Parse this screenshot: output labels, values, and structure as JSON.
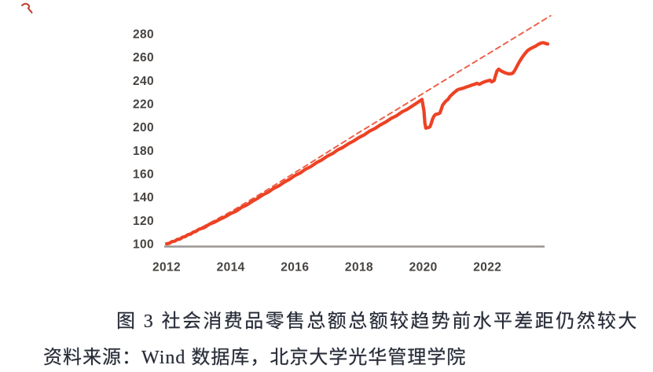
{
  "figure": {
    "caption": "图 3 社会消费品零售总额总额较趋势前水平差距仍然较大",
    "source": "资料来源：Wind 数据库，北京大学光华管理学院"
  },
  "chart_data": {
    "type": "line",
    "title": "",
    "xlabel": "",
    "ylabel": "",
    "xlim": [
      2011.9,
      2024.1
    ],
    "ylim": [
      100,
      296
    ],
    "grid": false,
    "legend_position": "none",
    "x_ticks": [
      2012,
      2014,
      2016,
      2018,
      2020,
      2022
    ],
    "y_ticks": [
      100,
      120,
      140,
      160,
      180,
      200,
      220,
      240,
      260,
      280
    ],
    "colors": {
      "actual_line": "#ed4224",
      "trend_line": "#ee5c43",
      "axis_line": "#999693",
      "tick_text": "#474340"
    },
    "series": [
      {
        "name": "trend",
        "style": "dashed",
        "color": "#ee5c43",
        "width": 1.9,
        "points": [
          [
            2012.1,
            100.3
          ],
          [
            2013,
            112.8
          ],
          [
            2014,
            127.5
          ],
          [
            2015,
            144.0
          ],
          [
            2016,
            161.0
          ],
          [
            2017,
            178.3
          ],
          [
            2018,
            195.5
          ],
          [
            2019,
            212.2
          ],
          [
            2020,
            229.0
          ],
          [
            2021,
            245.8
          ],
          [
            2022,
            262.5
          ],
          [
            2023,
            279.2
          ],
          [
            2023.97,
            295.5
          ]
        ]
      },
      {
        "name": "actual",
        "style": "solid",
        "color": "#ed4224",
        "width": 4.2,
        "points": [
          [
            2012.0,
            100.0
          ],
          [
            2012.08,
            100.4
          ],
          [
            2012.17,
            101.9
          ],
          [
            2012.25,
            102.2
          ],
          [
            2012.33,
            103.7
          ],
          [
            2012.42,
            104.1
          ],
          [
            2012.5,
            105.7
          ],
          [
            2012.58,
            106.2
          ],
          [
            2012.67,
            107.9
          ],
          [
            2012.75,
            108.3
          ],
          [
            2012.83,
            110.0
          ],
          [
            2012.92,
            110.7
          ],
          [
            2013.0,
            112.4
          ],
          [
            2013.17,
            113.8
          ],
          [
            2013.33,
            116.7
          ],
          [
            2013.5,
            118.6
          ],
          [
            2013.67,
            121.2
          ],
          [
            2013.83,
            123.2
          ],
          [
            2014.0,
            126.0
          ],
          [
            2014.17,
            128.0
          ],
          [
            2014.33,
            131.1
          ],
          [
            2014.5,
            133.3
          ],
          [
            2014.67,
            136.4
          ],
          [
            2014.83,
            138.8
          ],
          [
            2015.0,
            142.0
          ],
          [
            2015.17,
            144.3
          ],
          [
            2015.33,
            147.4
          ],
          [
            2015.5,
            149.7
          ],
          [
            2015.67,
            152.9
          ],
          [
            2015.83,
            155.3
          ],
          [
            2016.0,
            158.5
          ],
          [
            2016.17,
            160.8
          ],
          [
            2016.33,
            164.0
          ],
          [
            2016.5,
            166.3
          ],
          [
            2016.67,
            169.5
          ],
          [
            2016.83,
            171.8
          ],
          [
            2017.0,
            175.0
          ],
          [
            2017.17,
            177.3
          ],
          [
            2017.33,
            180.4
          ],
          [
            2017.5,
            182.7
          ],
          [
            2017.67,
            185.8
          ],
          [
            2017.83,
            188.1
          ],
          [
            2018.0,
            191.2
          ],
          [
            2018.17,
            193.6
          ],
          [
            2018.33,
            196.7
          ],
          [
            2018.5,
            199.0
          ],
          [
            2018.67,
            202.1
          ],
          [
            2018.83,
            204.4
          ],
          [
            2019.0,
            207.5
          ],
          [
            2019.17,
            209.8
          ],
          [
            2019.33,
            213.0
          ],
          [
            2019.5,
            215.3
          ],
          [
            2019.67,
            218.4
          ],
          [
            2019.83,
            221.2
          ],
          [
            2019.96,
            223.8
          ],
          [
            2020.02,
            214.0
          ],
          [
            2020.05,
            203.5
          ],
          [
            2020.08,
            199.2
          ],
          [
            2020.17,
            199.8
          ],
          [
            2020.21,
            200.4
          ],
          [
            2020.25,
            203.2
          ],
          [
            2020.29,
            207.0
          ],
          [
            2020.33,
            209.2
          ],
          [
            2020.38,
            210.9
          ],
          [
            2020.46,
            211.4
          ],
          [
            2020.52,
            212.2
          ],
          [
            2020.56,
            215.2
          ],
          [
            2020.6,
            218.6
          ],
          [
            2020.65,
            220.6
          ],
          [
            2020.71,
            222.4
          ],
          [
            2020.77,
            223.8
          ],
          [
            2020.83,
            226.2
          ],
          [
            2020.92,
            228.6
          ],
          [
            2021.0,
            230.6
          ],
          [
            2021.08,
            232.2
          ],
          [
            2021.17,
            232.9
          ],
          [
            2021.25,
            233.4
          ],
          [
            2021.33,
            234.3
          ],
          [
            2021.42,
            235.1
          ],
          [
            2021.5,
            235.9
          ],
          [
            2021.58,
            236.6
          ],
          [
            2021.67,
            237.6
          ],
          [
            2021.75,
            236.7
          ],
          [
            2021.83,
            238.0
          ],
          [
            2021.92,
            239.0
          ],
          [
            2022.0,
            239.6
          ],
          [
            2022.08,
            240.2
          ],
          [
            2022.13,
            238.9
          ],
          [
            2022.17,
            239.3
          ],
          [
            2022.21,
            240.1
          ],
          [
            2022.25,
            244.0
          ],
          [
            2022.3,
            248.2
          ],
          [
            2022.35,
            249.7
          ],
          [
            2022.42,
            248.3
          ],
          [
            2022.5,
            247.2
          ],
          [
            2022.58,
            246.3
          ],
          [
            2022.67,
            245.7
          ],
          [
            2022.75,
            245.9
          ],
          [
            2022.79,
            246.3
          ],
          [
            2022.85,
            248.5
          ],
          [
            2022.92,
            252.2
          ],
          [
            2023.0,
            256.2
          ],
          [
            2023.08,
            259.7
          ],
          [
            2023.17,
            263.1
          ],
          [
            2023.25,
            265.6
          ],
          [
            2023.33,
            267.1
          ],
          [
            2023.42,
            268.4
          ],
          [
            2023.5,
            269.4
          ],
          [
            2023.58,
            270.9
          ],
          [
            2023.67,
            272.1
          ],
          [
            2023.75,
            272.4
          ],
          [
            2023.83,
            271.6
          ],
          [
            2023.88,
            271.3
          ]
        ]
      }
    ]
  }
}
